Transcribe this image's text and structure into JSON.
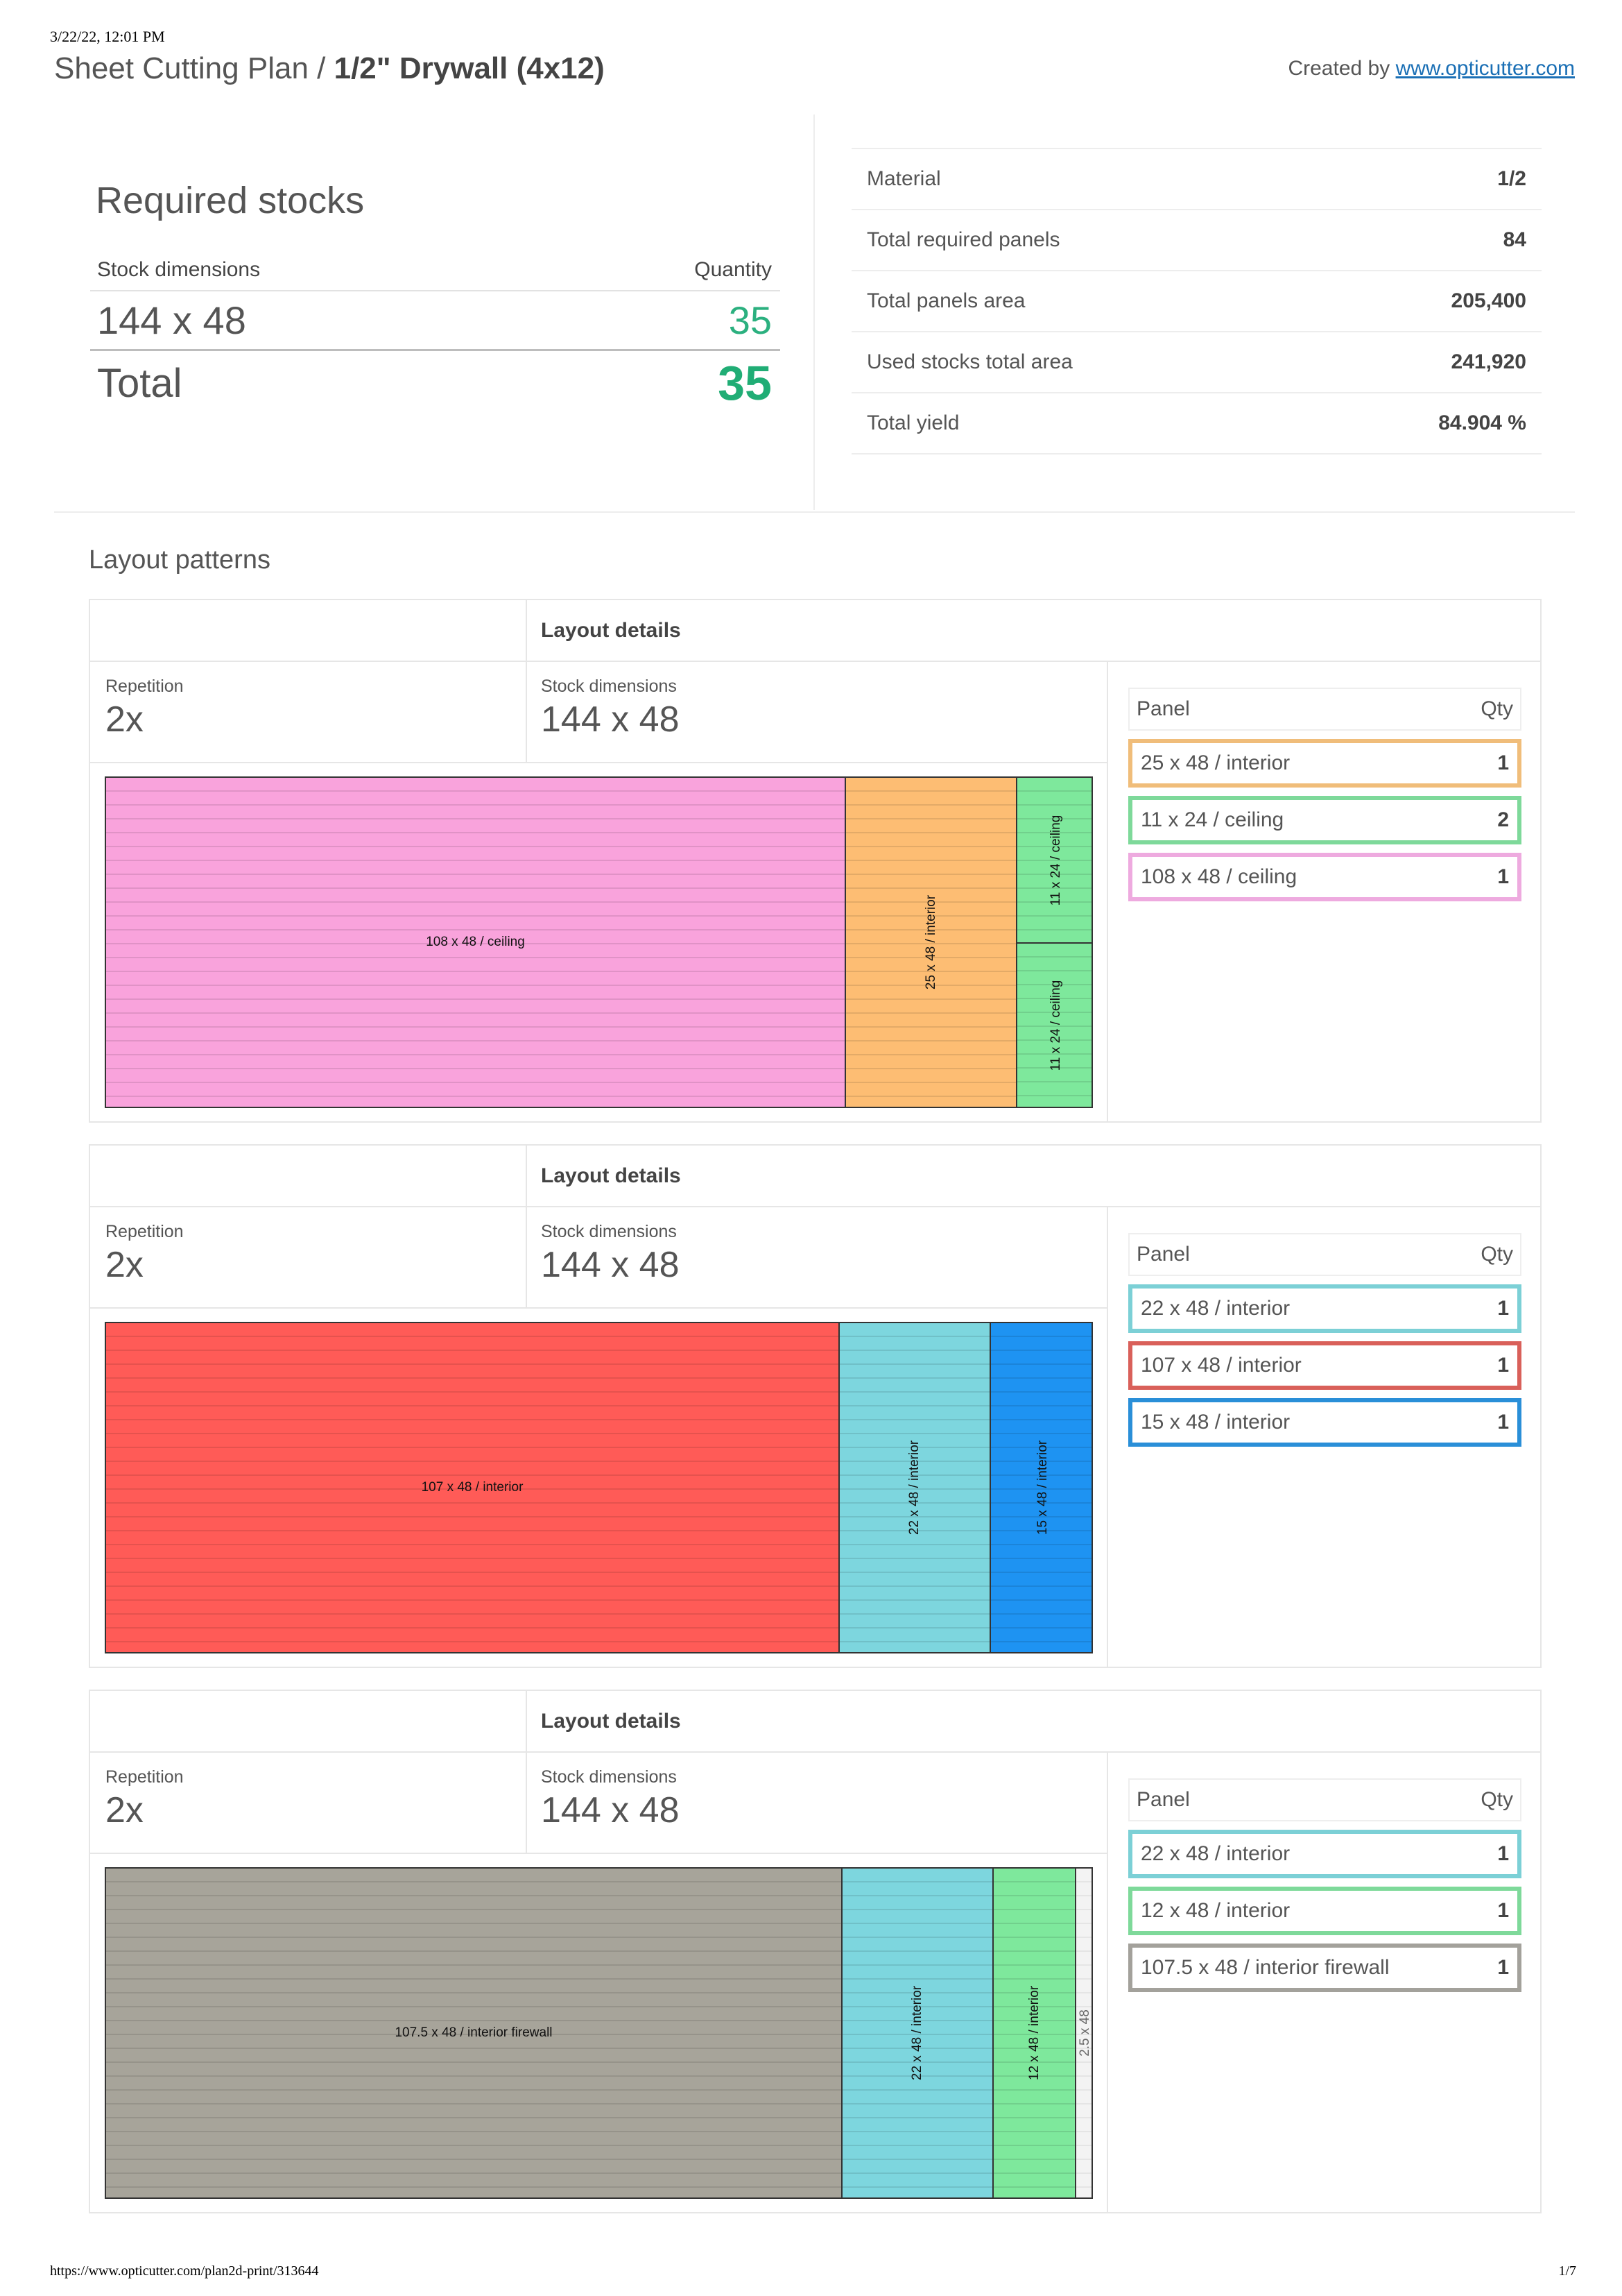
{
  "print_timestamp": "3/22/22, 12:01 PM",
  "header": {
    "title_prefix": "Sheet Cutting Plan / ",
    "title_bold": "1/2\" Drywall (4x12)",
    "created_by_label": "Created by ",
    "created_by_link": "www.opticutter.com"
  },
  "required_stocks": {
    "title": "Required stocks",
    "col_dimensions": "Stock dimensions",
    "col_quantity": "Quantity",
    "rows": [
      {
        "dimensions": "144 x 48",
        "quantity": "35"
      }
    ],
    "total_label": "Total",
    "total_value": "35"
  },
  "stats": [
    {
      "label": "Material",
      "value": "1/2"
    },
    {
      "label": "Total required panels",
      "value": "84"
    },
    {
      "label": "Total panels area",
      "value": "205,400"
    },
    {
      "label": "Used stocks total area",
      "value": "241,920"
    },
    {
      "label": "Total yield",
      "value": "84.904 %"
    }
  ],
  "layout_patterns_title": "Layout patterns",
  "colors": {
    "pink": "#f9a3dc",
    "orange": "#fdbd73",
    "green": "#7ee89c",
    "red": "#ff5b57",
    "cyan": "#7dd6de",
    "blue": "#1e93f2",
    "gray": "#a7a49a",
    "border_orange": "#f0bd7a",
    "border_green": "#7ed99a",
    "border_pink": "#eeaadf",
    "border_cyan": "#7cd0d6",
    "border_red": "#d9605a",
    "border_blue": "#2a8fd8",
    "border_gray": "#a3a19b",
    "accent_green": "#20ad75",
    "link_blue": "#1a6fb5"
  },
  "patterns": [
    {
      "details_label": "Layout details",
      "repetition_label": "Repetition",
      "repetition": "2x",
      "stock_label": "Stock dimensions",
      "stock": "144 x 48",
      "panel_col": "Panel",
      "qty_col": "Qty",
      "pieces": [
        {
          "label": "108 x 48 / ceiling",
          "color": "pink"
        },
        {
          "label": "25 x 48 / interior",
          "color": "orange"
        },
        {
          "label": "11 x 24 / ceiling",
          "color": "green"
        },
        {
          "label": "11 x 24 / ceiling",
          "color": "green"
        }
      ],
      "panels": [
        {
          "name": "25 x 48 / interior",
          "qty": "1",
          "color": "border_orange"
        },
        {
          "name": "11 x 24 / ceiling",
          "qty": "2",
          "color": "border_green"
        },
        {
          "name": "108 x 48 / ceiling",
          "qty": "1",
          "color": "border_pink"
        }
      ]
    },
    {
      "details_label": "Layout details",
      "repetition_label": "Repetition",
      "repetition": "2x",
      "stock_label": "Stock dimensions",
      "stock": "144 x 48",
      "panel_col": "Panel",
      "qty_col": "Qty",
      "pieces": [
        {
          "label": "107 x 48 / interior",
          "color": "red"
        },
        {
          "label": "22 x 48 / interior",
          "color": "cyan"
        },
        {
          "label": "15 x 48 / interior",
          "color": "blue"
        }
      ],
      "panels": [
        {
          "name": "22 x 48 / interior",
          "qty": "1",
          "color": "border_cyan"
        },
        {
          "name": "107 x 48 / interior",
          "qty": "1",
          "color": "border_red"
        },
        {
          "name": "15 x 48 / interior",
          "qty": "1",
          "color": "border_blue"
        }
      ]
    },
    {
      "details_label": "Layout details",
      "repetition_label": "Repetition",
      "repetition": "2x",
      "stock_label": "Stock dimensions",
      "stock": "144 x 48",
      "panel_col": "Panel",
      "qty_col": "Qty",
      "pieces": [
        {
          "label": "107.5 x 48 / interior firewall",
          "color": "gray"
        },
        {
          "label": "22 x 48 / interior",
          "color": "cyan"
        },
        {
          "label": "12 x 48 / interior",
          "color": "green"
        },
        {
          "label": "2.5 x 48",
          "color": "waste"
        }
      ],
      "panels": [
        {
          "name": "22 x 48 / interior",
          "qty": "1",
          "color": "border_cyan"
        },
        {
          "name": "12 x 48 / interior",
          "qty": "1",
          "color": "border_green"
        },
        {
          "name": "107.5 x 48 / interior firewall",
          "qty": "1",
          "color": "border_gray"
        }
      ]
    }
  ],
  "footer": {
    "url": "https://www.opticutter.com/plan2d-print/313644",
    "page": "1/7"
  }
}
